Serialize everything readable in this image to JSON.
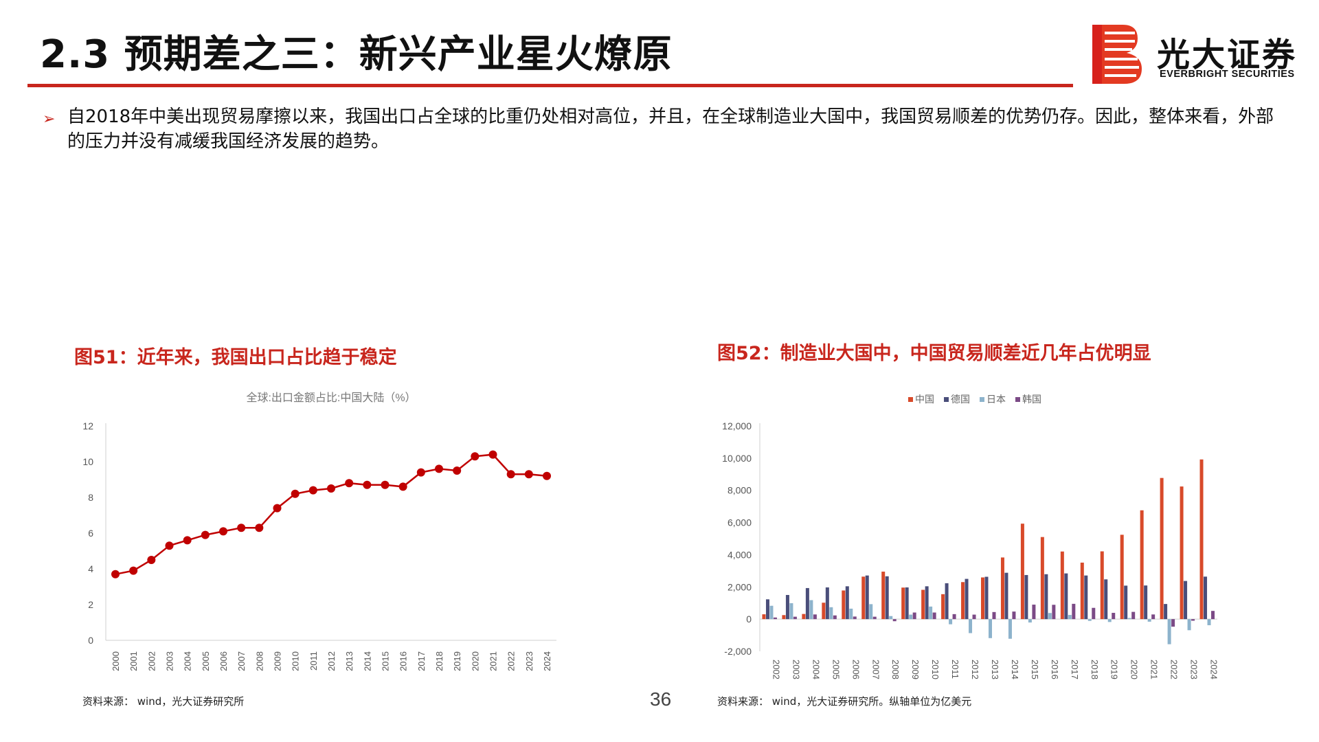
{
  "header": {
    "title": "2.3 预期差之三：新兴产业星火燎原",
    "logo_cn": "光大证券",
    "logo_en": "EVERBRIGHT SECURITIES",
    "accent_color": "#c8261d"
  },
  "bullet": {
    "icon": "arrow-right-icon",
    "text": "自2018年中美出现贸易摩擦以来，我国出口占全球的比重仍处相对高位，并且，在全球制造业大国中，我国贸易顺差的优势仍存。因此，整体来看，外部的压力并没有减缓我国经济发展的趋势。"
  },
  "figure51": {
    "title": "图51：近年来，我国出口占比趋于稳定",
    "source": "资料来源： wind，光大证券研究所"
  },
  "figure52": {
    "title": "图52：制造业大国中，中国贸易顺差近几年占优明显",
    "source": "资料来源： wind，光大证券研究所。纵轴单位为亿美元"
  },
  "page_number": "36",
  "chart_data": [
    {
      "type": "line",
      "title": "全球:出口金额占比:中国大陆（%）",
      "x": [
        "2000",
        "2001",
        "2002",
        "2003",
        "2004",
        "2005",
        "2006",
        "2007",
        "2008",
        "2009",
        "2010",
        "2011",
        "2012",
        "2013",
        "2014",
        "2015",
        "2016",
        "2017",
        "2018",
        "2019",
        "2020",
        "2021",
        "2022",
        "2023",
        "2024"
      ],
      "series": [
        {
          "values": [
            3.7,
            3.9,
            4.5,
            5.3,
            5.6,
            5.9,
            6.1,
            6.3,
            6.3,
            7.4,
            8.2,
            8.4,
            8.5,
            8.8,
            8.7,
            8.7,
            8.6,
            9.4,
            9.6,
            9.5,
            10.3,
            10.4,
            9.3,
            9.3,
            9.2
          ],
          "color": "#c00000"
        }
      ],
      "yticks": [
        "0",
        "2",
        "4",
        "6",
        "8",
        "10",
        "12"
      ],
      "ylim": [
        0,
        12
      ],
      "grid": false
    },
    {
      "type": "bar",
      "categories": [
        "2002",
        "2003",
        "2004",
        "2005",
        "2006",
        "2007",
        "2008",
        "2009",
        "2010",
        "2011",
        "2012",
        "2013",
        "2014",
        "2015",
        "2016",
        "2017",
        "2018",
        "2019",
        "2020",
        "2021",
        "2022",
        "2023",
        "2024"
      ],
      "series": [
        {
          "name": "中国",
          "color": "#d84a2a",
          "values": [
            300,
            250,
            320,
            1020,
            1780,
            2640,
            2950,
            1960,
            1820,
            1550,
            2300,
            2590,
            3830,
            5930,
            5100,
            4200,
            3510,
            4210,
            5240,
            6760,
            8770,
            8240,
            9920
          ]
        },
        {
          "name": "德国",
          "color": "#4a4e7a",
          "values": [
            1230,
            1500,
            1930,
            1970,
            2040,
            2710,
            2660,
            1970,
            2040,
            2230,
            2500,
            2630,
            2880,
            2740,
            2790,
            2840,
            2710,
            2470,
            2080,
            2090,
            940,
            2370,
            2640
          ]
        },
        {
          "name": "日本",
          "color": "#8db3cc",
          "values": [
            830,
            990,
            1180,
            740,
            650,
            930,
            190,
            280,
            780,
            -320,
            -870,
            -1180,
            -1220,
            -210,
            380,
            260,
            -110,
            -180,
            70,
            -160,
            -1560,
            -690,
            -380
          ]
        },
        {
          "name": "韩国",
          "color": "#7b4a86",
          "values": [
            100,
            150,
            290,
            230,
            160,
            150,
            -130,
            410,
            410,
            310,
            280,
            440,
            470,
            900,
            890,
            950,
            700,
            390,
            450,
            290,
            -470,
            -100,
            510
          ]
        }
      ],
      "yticks": [
        "-2,000",
        "0",
        "2,000",
        "4,000",
        "6,000",
        "8,000",
        "10,000",
        "12,000"
      ],
      "ylim": [
        -2000,
        12000
      ],
      "legend": "top",
      "grid": false
    }
  ]
}
